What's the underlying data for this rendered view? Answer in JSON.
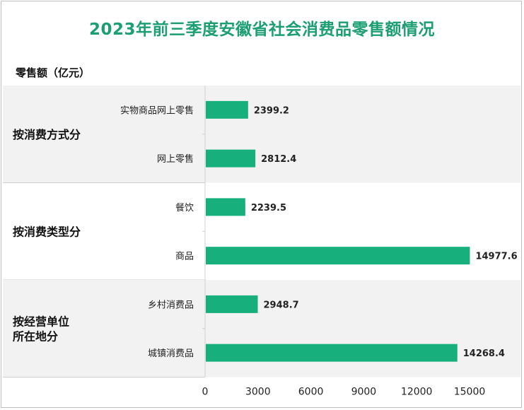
{
  "title": "2023年前三季度安徽省社会消费品零售额情况",
  "unit_label": "零售额（亿元）",
  "colors": {
    "bar": "#17b07c",
    "band": "#f2f2f2",
    "title": "#1a9e72"
  },
  "chart_data": {
    "type": "bar",
    "orientation": "horizontal",
    "title": "2023年前三季度安徽省社会消费品零售额情况",
    "ylabel": "零售额（亿元）",
    "xlim": [
      0,
      15000
    ],
    "xticks": [
      0,
      3000,
      6000,
      9000,
      12000,
      15000
    ],
    "groups": [
      {
        "name": "按消费方式分",
        "categories": [
          "实物商品网上零售",
          "网上零售"
        ],
        "values": [
          2399.2,
          2812.4
        ]
      },
      {
        "name": "按消费类型分",
        "categories": [
          "餐饮",
          "商品"
        ],
        "values": [
          2239.5,
          14977.6
        ]
      },
      {
        "name": "按经营单位所在地分",
        "name_lines": [
          "按经营单位",
          "所在地分"
        ],
        "categories": [
          "乡村消费品",
          "城镇消费品"
        ],
        "values": [
          2948.7,
          14268.4
        ]
      }
    ],
    "value_labels": [
      "2399.2",
      "2812.4",
      "2239.5",
      "14977.6",
      "2948.7",
      "14268.4"
    ]
  }
}
